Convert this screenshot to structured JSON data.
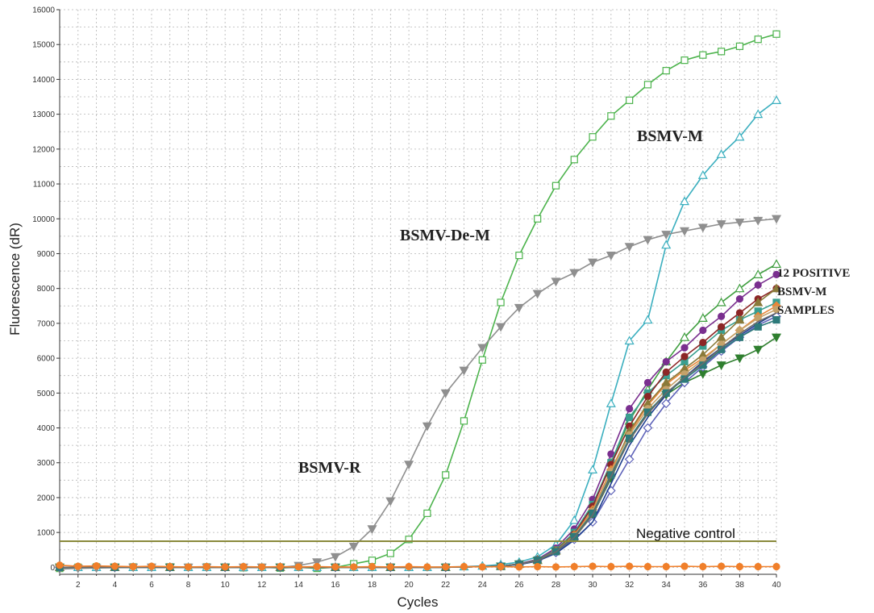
{
  "chart_data": {
    "type": "line",
    "xlabel": "Cycles",
    "ylabel": "Fluorescence (dR)",
    "xlim": [
      1,
      40
    ],
    "ylim": [
      -200,
      16000
    ],
    "x_ticks": [
      2,
      4,
      6,
      8,
      10,
      12,
      14,
      16,
      18,
      20,
      22,
      24,
      26,
      28,
      30,
      32,
      34,
      36,
      38,
      40
    ],
    "y_ticks": [
      0,
      1000,
      2000,
      3000,
      4000,
      5000,
      6000,
      7000,
      8000,
      9000,
      10000,
      11000,
      12000,
      13000,
      14000,
      15000,
      16000
    ],
    "grid": true,
    "threshold": {
      "value": 750,
      "color": "#8a8a3c"
    },
    "annotations": {
      "de_m": "BSMV-De-M",
      "m": "BSMV-M",
      "r": "BSMV-R",
      "positive_line1": "12 POSITIVE",
      "positive_line2": "BSMV-M",
      "positive_line3": "SAMPLES",
      "negative": "Negative control"
    },
    "series": [
      {
        "color": "#4cb34c",
        "marker": "square-open",
        "x": [
          1,
          2,
          3,
          4,
          5,
          6,
          7,
          8,
          9,
          10,
          11,
          12,
          13,
          14,
          15,
          16,
          17,
          18,
          19,
          20,
          21,
          22,
          23,
          24,
          25,
          26,
          27,
          28,
          29,
          30,
          31,
          32,
          33,
          34,
          35,
          36,
          37,
          38,
          39,
          40
        ],
        "values": [
          -30,
          0,
          10,
          0,
          10,
          0,
          10,
          0,
          10,
          0,
          -10,
          0,
          -20,
          0,
          -30,
          0,
          100,
          200,
          400,
          800,
          1550,
          2650,
          4200,
          5950,
          7600,
          8950,
          10000,
          10950,
          11700,
          12350,
          12950,
          13400,
          13850,
          14250,
          14550,
          14700,
          14800,
          14950,
          15150,
          15300
        ]
      },
      {
        "color": "#3bafbf",
        "marker": "triangle-open",
        "x": [
          1,
          2,
          3,
          4,
          5,
          6,
          7,
          8,
          9,
          10,
          11,
          12,
          13,
          14,
          15,
          16,
          17,
          18,
          19,
          20,
          21,
          22,
          23,
          24,
          25,
          26,
          27,
          28,
          29,
          30,
          31,
          32,
          33,
          34,
          35,
          36,
          37,
          38,
          39,
          40
        ],
        "values": [
          0,
          0,
          0,
          0,
          0,
          0,
          0,
          0,
          0,
          0,
          0,
          0,
          0,
          0,
          0,
          0,
          0,
          0,
          0,
          0,
          0,
          10,
          20,
          40,
          80,
          150,
          300,
          650,
          1350,
          2800,
          4700,
          6500,
          7100,
          9250,
          10500,
          11250,
          11850,
          12350,
          13000,
          13400
        ]
      },
      {
        "color": "#8f8f8f",
        "marker": "triangle-down",
        "x": [
          1,
          2,
          3,
          4,
          5,
          6,
          7,
          8,
          9,
          10,
          11,
          12,
          13,
          14,
          15,
          16,
          17,
          18,
          19,
          20,
          21,
          22,
          23,
          24,
          25,
          26,
          27,
          28,
          29,
          30,
          31,
          32,
          33,
          34,
          35,
          36,
          37,
          38,
          39,
          40
        ],
        "values": [
          -50,
          -30,
          -20,
          -10,
          0,
          0,
          0,
          0,
          0,
          0,
          0,
          0,
          0,
          50,
          150,
          300,
          600,
          1100,
          1900,
          2950,
          4050,
          5000,
          5650,
          6300,
          6900,
          7450,
          7850,
          8200,
          8450,
          8750,
          8950,
          9200,
          9400,
          9550,
          9650,
          9750,
          9850,
          9900,
          9950,
          10000
        ]
      },
      {
        "color": "#3f9e3f",
        "marker": "triangle-open",
        "x": [
          1,
          4,
          7,
          10,
          13,
          16,
          19,
          22,
          25,
          26,
          27,
          28,
          29,
          30,
          31,
          32,
          33,
          34,
          35,
          36,
          37,
          38,
          39,
          40
        ],
        "values": [
          0,
          0,
          0,
          0,
          0,
          0,
          0,
          0,
          30,
          100,
          220,
          500,
          1000,
          1800,
          3000,
          4200,
          5100,
          5900,
          6600,
          7150,
          7600,
          8000,
          8400,
          8700
        ]
      },
      {
        "color": "#7a2f8f",
        "marker": "circle",
        "x": [
          1,
          4,
          7,
          10,
          13,
          16,
          19,
          22,
          25,
          26,
          27,
          28,
          29,
          30,
          31,
          32,
          33,
          34,
          35,
          36,
          37,
          38,
          39,
          40
        ],
        "values": [
          0,
          0,
          0,
          0,
          0,
          0,
          0,
          0,
          30,
          100,
          230,
          550,
          1100,
          1950,
          3250,
          4550,
          5300,
          5900,
          6300,
          6800,
          7200,
          7700,
          8100,
          8400
        ]
      },
      {
        "color": "#3a9e8f",
        "marker": "square",
        "x": [
          1,
          4,
          7,
          10,
          13,
          16,
          19,
          22,
          25,
          26,
          27,
          28,
          29,
          30,
          31,
          32,
          33,
          34,
          35,
          36,
          37,
          38,
          39,
          40
        ],
        "values": [
          0,
          0,
          0,
          0,
          0,
          0,
          0,
          0,
          30,
          90,
          210,
          500,
          1000,
          1800,
          3000,
          4300,
          5000,
          5500,
          5900,
          6350,
          6800,
          7100,
          7350,
          7600
        ]
      },
      {
        "color": "#8c2626",
        "marker": "circle",
        "x": [
          1,
          4,
          7,
          10,
          13,
          16,
          19,
          22,
          25,
          26,
          27,
          28,
          29,
          30,
          31,
          32,
          33,
          34,
          35,
          36,
          37,
          38,
          39,
          40
        ],
        "values": [
          0,
          0,
          0,
          0,
          0,
          0,
          0,
          0,
          30,
          90,
          200,
          480,
          950,
          1750,
          2950,
          4050,
          4900,
          5600,
          6050,
          6450,
          6900,
          7300,
          7700,
          8000
        ]
      },
      {
        "color": "#e8873a",
        "marker": "diamond",
        "x": [
          1,
          4,
          7,
          10,
          13,
          16,
          19,
          22,
          25,
          26,
          27,
          28,
          29,
          30,
          31,
          32,
          33,
          34,
          35,
          36,
          37,
          38,
          39,
          40
        ],
        "values": [
          0,
          0,
          0,
          0,
          0,
          0,
          0,
          0,
          30,
          90,
          200,
          470,
          930,
          1650,
          2800,
          3850,
          4650,
          5250,
          5650,
          6000,
          6400,
          6800,
          7200,
          7500
        ]
      },
      {
        "color": "#8a7a3a",
        "marker": "triangle",
        "x": [
          1,
          4,
          7,
          10,
          13,
          16,
          19,
          22,
          25,
          26,
          27,
          28,
          29,
          30,
          31,
          32,
          33,
          34,
          35,
          36,
          37,
          38,
          39,
          40
        ],
        "values": [
          0,
          0,
          0,
          0,
          0,
          0,
          0,
          0,
          30,
          90,
          200,
          470,
          900,
          1600,
          2700,
          3900,
          4700,
          5300,
          5700,
          6100,
          6600,
          7100,
          7600,
          8000
        ]
      },
      {
        "color": "#2f7f2f",
        "marker": "triangle-down",
        "x": [
          1,
          4,
          7,
          10,
          13,
          16,
          19,
          22,
          25,
          26,
          27,
          28,
          29,
          30,
          31,
          32,
          33,
          34,
          35,
          36,
          37,
          38,
          39,
          40
        ],
        "values": [
          0,
          0,
          0,
          0,
          0,
          0,
          0,
          0,
          30,
          90,
          190,
          440,
          850,
          1500,
          2550,
          3700,
          4450,
          4950,
          5300,
          5550,
          5800,
          6000,
          6250,
          6600
        ]
      },
      {
        "color": "#5d62b8",
        "marker": "diamond-open",
        "x": [
          1,
          4,
          7,
          10,
          13,
          16,
          19,
          22,
          25,
          26,
          27,
          28,
          29,
          30,
          31,
          32,
          33,
          34,
          35,
          36,
          37,
          38,
          39,
          40
        ],
        "values": [
          0,
          0,
          0,
          0,
          0,
          0,
          0,
          0,
          30,
          80,
          180,
          420,
          800,
          1300,
          2200,
          3100,
          4000,
          4700,
          5300,
          5750,
          6200,
          6600,
          6950,
          7200
        ]
      },
      {
        "color": "#1f3f8f",
        "marker": "none",
        "x": [
          1,
          4,
          7,
          10,
          13,
          16,
          19,
          22,
          25,
          26,
          27,
          28,
          29,
          30,
          31,
          32,
          33,
          34,
          35,
          36,
          37,
          38,
          39,
          40
        ],
        "values": [
          0,
          0,
          0,
          0,
          0,
          0,
          0,
          0,
          30,
          80,
          180,
          400,
          780,
          1300,
          2400,
          3500,
          4300,
          4950,
          5450,
          5900,
          6300,
          6650,
          7000,
          7300
        ]
      },
      {
        "color": "#c4a26a",
        "marker": "circle",
        "x": [
          1,
          4,
          7,
          10,
          13,
          16,
          19,
          22,
          25,
          26,
          27,
          28,
          29,
          30,
          31,
          32,
          33,
          34,
          35,
          36,
          37,
          38,
          39,
          40
        ],
        "values": [
          0,
          0,
          0,
          0,
          0,
          0,
          0,
          0,
          30,
          90,
          200,
          460,
          900,
          1600,
          2750,
          3800,
          4550,
          5100,
          5550,
          5950,
          6400,
          6800,
          7150,
          7400
        ]
      },
      {
        "color": "#2d7a7a",
        "marker": "square",
        "x": [
          1,
          4,
          7,
          10,
          13,
          16,
          19,
          22,
          25,
          26,
          27,
          28,
          29,
          30,
          31,
          32,
          33,
          34,
          35,
          36,
          37,
          38,
          39,
          40
        ],
        "values": [
          0,
          0,
          0,
          0,
          0,
          0,
          0,
          0,
          30,
          90,
          200,
          450,
          880,
          1550,
          2650,
          3700,
          4450,
          5000,
          5400,
          5800,
          6250,
          6600,
          6900,
          7100
        ]
      },
      {
        "color": "#6a6a6a",
        "marker": "none",
        "x": [
          1,
          4,
          7,
          10,
          13,
          16,
          19,
          22,
          25,
          26,
          27,
          28,
          29,
          30,
          31,
          32,
          33,
          34,
          35,
          36,
          37,
          38,
          39,
          40
        ],
        "values": [
          0,
          0,
          0,
          0,
          0,
          0,
          0,
          0,
          30,
          90,
          190,
          440,
          860,
          1500,
          2600,
          3650,
          4400,
          5000,
          5450,
          5850,
          6300,
          6700,
          7050,
          7300
        ]
      },
      {
        "color": "#f07f2a",
        "marker": "circle",
        "x": [
          1,
          2,
          3,
          4,
          5,
          6,
          7,
          8,
          9,
          10,
          11,
          12,
          13,
          14,
          15,
          16,
          17,
          18,
          19,
          20,
          21,
          22,
          23,
          24,
          25,
          26,
          27,
          28,
          29,
          30,
          31,
          32,
          33,
          34,
          35,
          36,
          37,
          38,
          39,
          40
        ],
        "values": [
          60,
          30,
          40,
          30,
          20,
          30,
          20,
          10,
          20,
          10,
          20,
          10,
          20,
          10,
          20,
          10,
          10,
          20,
          10,
          20,
          10,
          10,
          20,
          10,
          20,
          10,
          20,
          10,
          20,
          30,
          20,
          30,
          20,
          20,
          30,
          20,
          30,
          20,
          20,
          20
        ]
      }
    ]
  }
}
